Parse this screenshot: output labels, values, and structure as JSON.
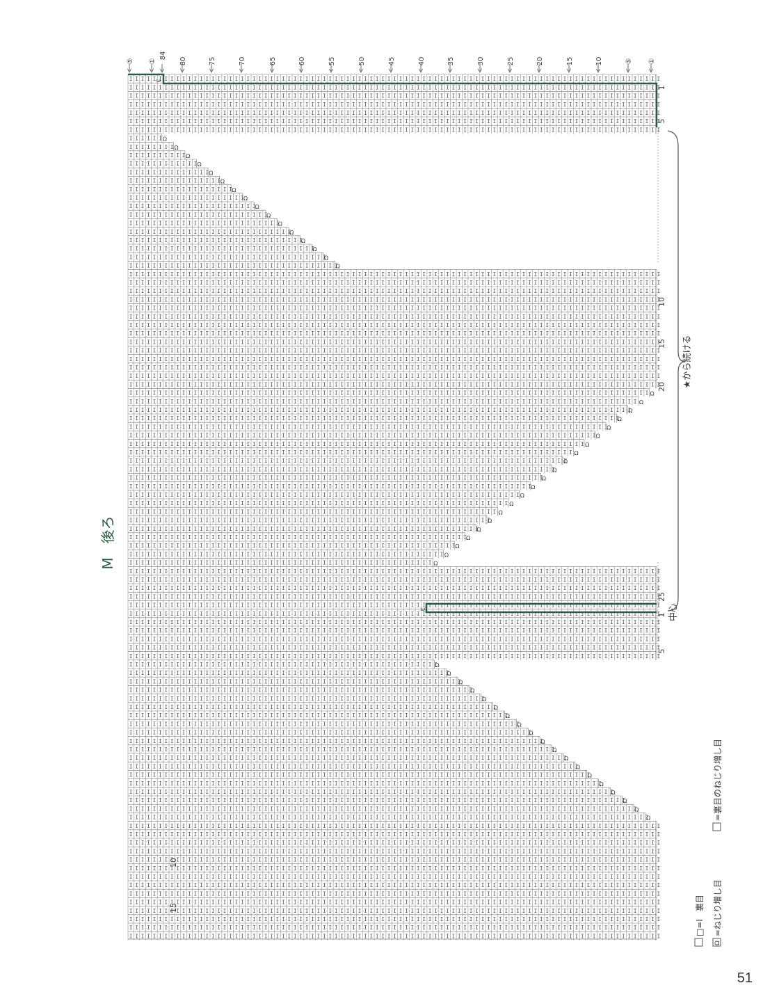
{
  "page_number": "51",
  "title": "M　後ろ",
  "center_label": "中心",
  "continue_note": "★から続ける",
  "top_col_markers": [
    "⑤",
    "①",
    "84",
    "80",
    "75",
    "70",
    "65",
    "60",
    "55",
    "50",
    "45",
    "40",
    "35",
    "30",
    "25",
    "20",
    "15",
    "10",
    "⑤",
    "①"
  ],
  "row_labels": {
    "section_a": [
      "1",
      "5"
    ],
    "section_b": [
      "10",
      "15",
      "20",
      "25"
    ],
    "section_c": [
      "1",
      "5",
      "10",
      "15"
    ]
  },
  "legend": {
    "purl_eq": "□=Ⅰ",
    "purl": "裏目",
    "twist_inc_mark": "Ω",
    "twist_inc": "=ねじり増し目",
    "purl_twist_inc": "=裏目のねじり増し目"
  },
  "symbols": {
    "purl": "I",
    "twist_increase": "Ω",
    "end_mark": "ω"
  },
  "colors": {
    "grid": "#7a7a7a",
    "accent": "#2c5a43",
    "text": "#3a3a3a"
  }
}
